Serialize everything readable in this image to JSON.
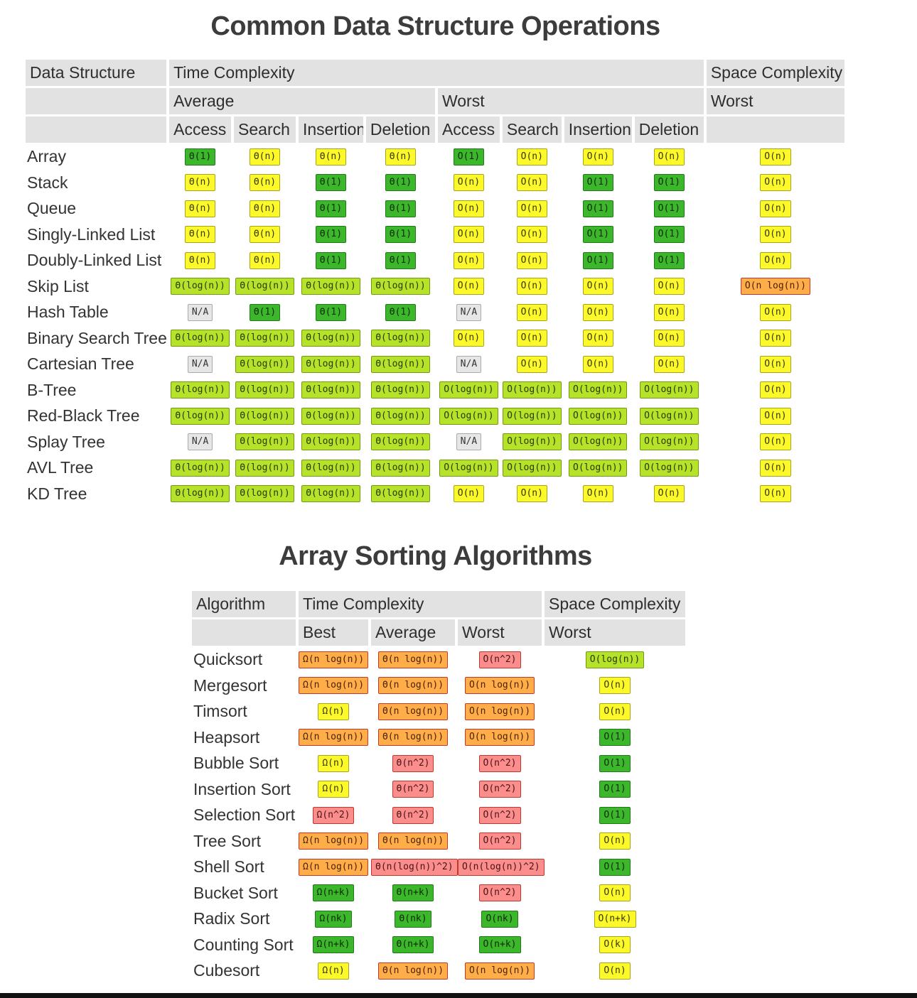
{
  "table1": {
    "title": "Common Data Structure Operations",
    "h_data_structure": "Data Structure",
    "h_time_complexity": "Time Complexity",
    "h_space_complexity": "Space Complexity",
    "h_average": "Average",
    "h_worst": "Worst",
    "h_space_worst": "Worst",
    "ops": [
      "Access",
      "Search",
      "Insertion",
      "Deletion",
      "Access",
      "Search",
      "Insertion",
      "Deletion"
    ],
    "rows": [
      {
        "name": "Array",
        "cells": [
          [
            "Θ(1)",
            "g"
          ],
          [
            "Θ(n)",
            "y"
          ],
          [
            "Θ(n)",
            "y"
          ],
          [
            "Θ(n)",
            "y"
          ],
          [
            "O(1)",
            "g"
          ],
          [
            "O(n)",
            "y"
          ],
          [
            "O(n)",
            "y"
          ],
          [
            "O(n)",
            "y"
          ],
          [
            "O(n)",
            "y"
          ]
        ]
      },
      {
        "name": "Stack",
        "cells": [
          [
            "Θ(n)",
            "y"
          ],
          [
            "Θ(n)",
            "y"
          ],
          [
            "Θ(1)",
            "g"
          ],
          [
            "Θ(1)",
            "g"
          ],
          [
            "O(n)",
            "y"
          ],
          [
            "O(n)",
            "y"
          ],
          [
            "O(1)",
            "g"
          ],
          [
            "O(1)",
            "g"
          ],
          [
            "O(n)",
            "y"
          ]
        ]
      },
      {
        "name": "Queue",
        "cells": [
          [
            "Θ(n)",
            "y"
          ],
          [
            "Θ(n)",
            "y"
          ],
          [
            "Θ(1)",
            "g"
          ],
          [
            "Θ(1)",
            "g"
          ],
          [
            "O(n)",
            "y"
          ],
          [
            "O(n)",
            "y"
          ],
          [
            "O(1)",
            "g"
          ],
          [
            "O(1)",
            "g"
          ],
          [
            "O(n)",
            "y"
          ]
        ]
      },
      {
        "name": "Singly-Linked List",
        "cells": [
          [
            "Θ(n)",
            "y"
          ],
          [
            "Θ(n)",
            "y"
          ],
          [
            "Θ(1)",
            "g"
          ],
          [
            "Θ(1)",
            "g"
          ],
          [
            "O(n)",
            "y"
          ],
          [
            "O(n)",
            "y"
          ],
          [
            "O(1)",
            "g"
          ],
          [
            "O(1)",
            "g"
          ],
          [
            "O(n)",
            "y"
          ]
        ]
      },
      {
        "name": "Doubly-Linked List",
        "cells": [
          [
            "Θ(n)",
            "y"
          ],
          [
            "Θ(n)",
            "y"
          ],
          [
            "Θ(1)",
            "g"
          ],
          [
            "Θ(1)",
            "g"
          ],
          [
            "O(n)",
            "y"
          ],
          [
            "O(n)",
            "y"
          ],
          [
            "O(1)",
            "g"
          ],
          [
            "O(1)",
            "g"
          ],
          [
            "O(n)",
            "y"
          ]
        ]
      },
      {
        "name": "Skip List",
        "cells": [
          [
            "Θ(log(n))",
            "lg"
          ],
          [
            "Θ(log(n))",
            "lg"
          ],
          [
            "Θ(log(n))",
            "lg"
          ],
          [
            "Θ(log(n))",
            "lg"
          ],
          [
            "O(n)",
            "y"
          ],
          [
            "O(n)",
            "y"
          ],
          [
            "O(n)",
            "y"
          ],
          [
            "O(n)",
            "y"
          ],
          [
            "O(n log(n))",
            "o"
          ]
        ]
      },
      {
        "name": "Hash Table",
        "cells": [
          [
            "N/A",
            "n"
          ],
          [
            "Θ(1)",
            "g"
          ],
          [
            "Θ(1)",
            "g"
          ],
          [
            "Θ(1)",
            "g"
          ],
          [
            "N/A",
            "n"
          ],
          [
            "O(n)",
            "y"
          ],
          [
            "O(n)",
            "y"
          ],
          [
            "O(n)",
            "y"
          ],
          [
            "O(n)",
            "y"
          ]
        ]
      },
      {
        "name": "Binary Search Tree",
        "cells": [
          [
            "Θ(log(n))",
            "lg"
          ],
          [
            "Θ(log(n))",
            "lg"
          ],
          [
            "Θ(log(n))",
            "lg"
          ],
          [
            "Θ(log(n))",
            "lg"
          ],
          [
            "O(n)",
            "y"
          ],
          [
            "O(n)",
            "y"
          ],
          [
            "O(n)",
            "y"
          ],
          [
            "O(n)",
            "y"
          ],
          [
            "O(n)",
            "y"
          ]
        ]
      },
      {
        "name": "Cartesian Tree",
        "cells": [
          [
            "N/A",
            "n"
          ],
          [
            "Θ(log(n))",
            "lg"
          ],
          [
            "Θ(log(n))",
            "lg"
          ],
          [
            "Θ(log(n))",
            "lg"
          ],
          [
            "N/A",
            "n"
          ],
          [
            "O(n)",
            "y"
          ],
          [
            "O(n)",
            "y"
          ],
          [
            "O(n)",
            "y"
          ],
          [
            "O(n)",
            "y"
          ]
        ]
      },
      {
        "name": "B-Tree",
        "cells": [
          [
            "Θ(log(n))",
            "lg"
          ],
          [
            "Θ(log(n))",
            "lg"
          ],
          [
            "Θ(log(n))",
            "lg"
          ],
          [
            "Θ(log(n))",
            "lg"
          ],
          [
            "O(log(n))",
            "lg"
          ],
          [
            "O(log(n))",
            "lg"
          ],
          [
            "O(log(n))",
            "lg"
          ],
          [
            "O(log(n))",
            "lg"
          ],
          [
            "O(n)",
            "y"
          ]
        ]
      },
      {
        "name": "Red-Black Tree",
        "cells": [
          [
            "Θ(log(n))",
            "lg"
          ],
          [
            "Θ(log(n))",
            "lg"
          ],
          [
            "Θ(log(n))",
            "lg"
          ],
          [
            "Θ(log(n))",
            "lg"
          ],
          [
            "O(log(n))",
            "lg"
          ],
          [
            "O(log(n))",
            "lg"
          ],
          [
            "O(log(n))",
            "lg"
          ],
          [
            "O(log(n))",
            "lg"
          ],
          [
            "O(n)",
            "y"
          ]
        ]
      },
      {
        "name": "Splay Tree",
        "cells": [
          [
            "N/A",
            "n"
          ],
          [
            "Θ(log(n))",
            "lg"
          ],
          [
            "Θ(log(n))",
            "lg"
          ],
          [
            "Θ(log(n))",
            "lg"
          ],
          [
            "N/A",
            "n"
          ],
          [
            "O(log(n))",
            "lg"
          ],
          [
            "O(log(n))",
            "lg"
          ],
          [
            "O(log(n))",
            "lg"
          ],
          [
            "O(n)",
            "y"
          ]
        ]
      },
      {
        "name": "AVL Tree",
        "cells": [
          [
            "Θ(log(n))",
            "lg"
          ],
          [
            "Θ(log(n))",
            "lg"
          ],
          [
            "Θ(log(n))",
            "lg"
          ],
          [
            "Θ(log(n))",
            "lg"
          ],
          [
            "O(log(n))",
            "lg"
          ],
          [
            "O(log(n))",
            "lg"
          ],
          [
            "O(log(n))",
            "lg"
          ],
          [
            "O(log(n))",
            "lg"
          ],
          [
            "O(n)",
            "y"
          ]
        ]
      },
      {
        "name": "KD Tree",
        "cells": [
          [
            "Θ(log(n))",
            "lg"
          ],
          [
            "Θ(log(n))",
            "lg"
          ],
          [
            "Θ(log(n))",
            "lg"
          ],
          [
            "Θ(log(n))",
            "lg"
          ],
          [
            "O(n)",
            "y"
          ],
          [
            "O(n)",
            "y"
          ],
          [
            "O(n)",
            "y"
          ],
          [
            "O(n)",
            "y"
          ],
          [
            "O(n)",
            "y"
          ]
        ]
      }
    ]
  },
  "table2": {
    "title": "Array Sorting Algorithms",
    "h_algorithm": "Algorithm",
    "h_time_complexity": "Time Complexity",
    "h_space_complexity": "Space Complexity",
    "h_best": "Best",
    "h_average": "Average",
    "h_worst": "Worst",
    "h_space_worst": "Worst",
    "rows": [
      {
        "name": "Quicksort",
        "cells": [
          [
            "Ω(n log(n))",
            "o"
          ],
          [
            "Θ(n log(n))",
            "o"
          ],
          [
            "O(n^2)",
            "r"
          ],
          [
            "O(log(n))",
            "lg"
          ]
        ]
      },
      {
        "name": "Mergesort",
        "cells": [
          [
            "Ω(n log(n))",
            "o"
          ],
          [
            "Θ(n log(n))",
            "o"
          ],
          [
            "O(n log(n))",
            "o"
          ],
          [
            "O(n)",
            "y"
          ]
        ]
      },
      {
        "name": "Timsort",
        "cells": [
          [
            "Ω(n)",
            "y"
          ],
          [
            "Θ(n log(n))",
            "o"
          ],
          [
            "O(n log(n))",
            "o"
          ],
          [
            "O(n)",
            "y"
          ]
        ]
      },
      {
        "name": "Heapsort",
        "cells": [
          [
            "Ω(n log(n))",
            "o"
          ],
          [
            "Θ(n log(n))",
            "o"
          ],
          [
            "O(n log(n))",
            "o"
          ],
          [
            "O(1)",
            "g"
          ]
        ]
      },
      {
        "name": "Bubble Sort",
        "cells": [
          [
            "Ω(n)",
            "y"
          ],
          [
            "Θ(n^2)",
            "r"
          ],
          [
            "O(n^2)",
            "r"
          ],
          [
            "O(1)",
            "g"
          ]
        ]
      },
      {
        "name": "Insertion Sort",
        "cells": [
          [
            "Ω(n)",
            "y"
          ],
          [
            "Θ(n^2)",
            "r"
          ],
          [
            "O(n^2)",
            "r"
          ],
          [
            "O(1)",
            "g"
          ]
        ]
      },
      {
        "name": "Selection Sort",
        "cells": [
          [
            "Ω(n^2)",
            "r"
          ],
          [
            "Θ(n^2)",
            "r"
          ],
          [
            "O(n^2)",
            "r"
          ],
          [
            "O(1)",
            "g"
          ]
        ]
      },
      {
        "name": "Tree Sort",
        "cells": [
          [
            "Ω(n log(n))",
            "o"
          ],
          [
            "Θ(n log(n))",
            "o"
          ],
          [
            "O(n^2)",
            "r"
          ],
          [
            "O(n)",
            "y"
          ]
        ]
      },
      {
        "name": "Shell Sort",
        "cells": [
          [
            "Ω(n log(n))",
            "o"
          ],
          [
            "Θ(n(log(n))^2)",
            "r"
          ],
          [
            "O(n(log(n))^2)",
            "r"
          ],
          [
            "O(1)",
            "g"
          ]
        ]
      },
      {
        "name": "Bucket Sort",
        "cells": [
          [
            "Ω(n+k)",
            "g"
          ],
          [
            "Θ(n+k)",
            "g"
          ],
          [
            "O(n^2)",
            "r"
          ],
          [
            "O(n)",
            "y"
          ]
        ]
      },
      {
        "name": "Radix Sort",
        "cells": [
          [
            "Ω(nk)",
            "g"
          ],
          [
            "Θ(nk)",
            "g"
          ],
          [
            "O(nk)",
            "g"
          ],
          [
            "O(n+k)",
            "y"
          ]
        ]
      },
      {
        "name": "Counting Sort",
        "cells": [
          [
            "Ω(n+k)",
            "g"
          ],
          [
            "Θ(n+k)",
            "g"
          ],
          [
            "O(n+k)",
            "g"
          ],
          [
            "O(k)",
            "y"
          ]
        ]
      },
      {
        "name": "Cubesort",
        "cells": [
          [
            "Ω(n)",
            "y"
          ],
          [
            "Θ(n log(n))",
            "o"
          ],
          [
            "O(n log(n))",
            "o"
          ],
          [
            "O(n)",
            "y"
          ]
        ]
      }
    ]
  },
  "colors": {
    "g": "#3cb62a",
    "lg": "#b6e22a",
    "y": "#fcf92a",
    "o": "#ffad48",
    "r": "#fb8d8d",
    "n": "#e6e6e6",
    "header_bg": "#e2e2e2"
  }
}
